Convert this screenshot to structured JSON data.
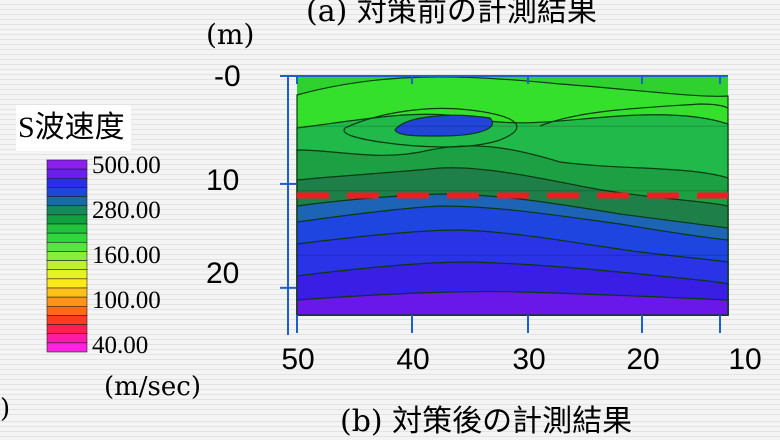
{
  "chart_data": {
    "type": "heatmap",
    "title_top": "(a) 対策前の計測結果",
    "title_bottom": "(b) 対策後の計測結果",
    "y_unit": "(m)",
    "y_ticks": [
      "-0",
      "10",
      "20"
    ],
    "x_ticks": [
      "50",
      "40",
      "30",
      "20",
      "10"
    ],
    "xlim": [
      50,
      10
    ],
    "ylim": [
      0,
      23
    ],
    "legend": {
      "title": "S波速度",
      "unit": "(m/sec)",
      "labels": [
        "500.00",
        "280.00",
        "160.00",
        "100.00",
        "40.00"
      ],
      "colors": [
        "#8a1ff0",
        "#6a1ff0",
        "#2a2ee8",
        "#1c47d8",
        "#1a6aa8",
        "#168a5a",
        "#10a040",
        "#1fc43c",
        "#2ed83a",
        "#55e640",
        "#88ee3c",
        "#bef030",
        "#e6f222",
        "#ffe81a",
        "#ffc018",
        "#ff9418",
        "#ff6a18",
        "#ff3c20",
        "#ff2050",
        "#ff1aa8",
        "#ff22e0"
      ]
    },
    "boundary_line_depth": 11.5,
    "contour_colors": [
      "#2fd12f",
      "#35e02d",
      "#20b94a",
      "#1da044",
      "#1e8048",
      "#1e64b6",
      "#1e45e0",
      "#2a33e6",
      "#3a1ee6",
      "#6a18ea"
    ],
    "note_edge_text": ")"
  }
}
